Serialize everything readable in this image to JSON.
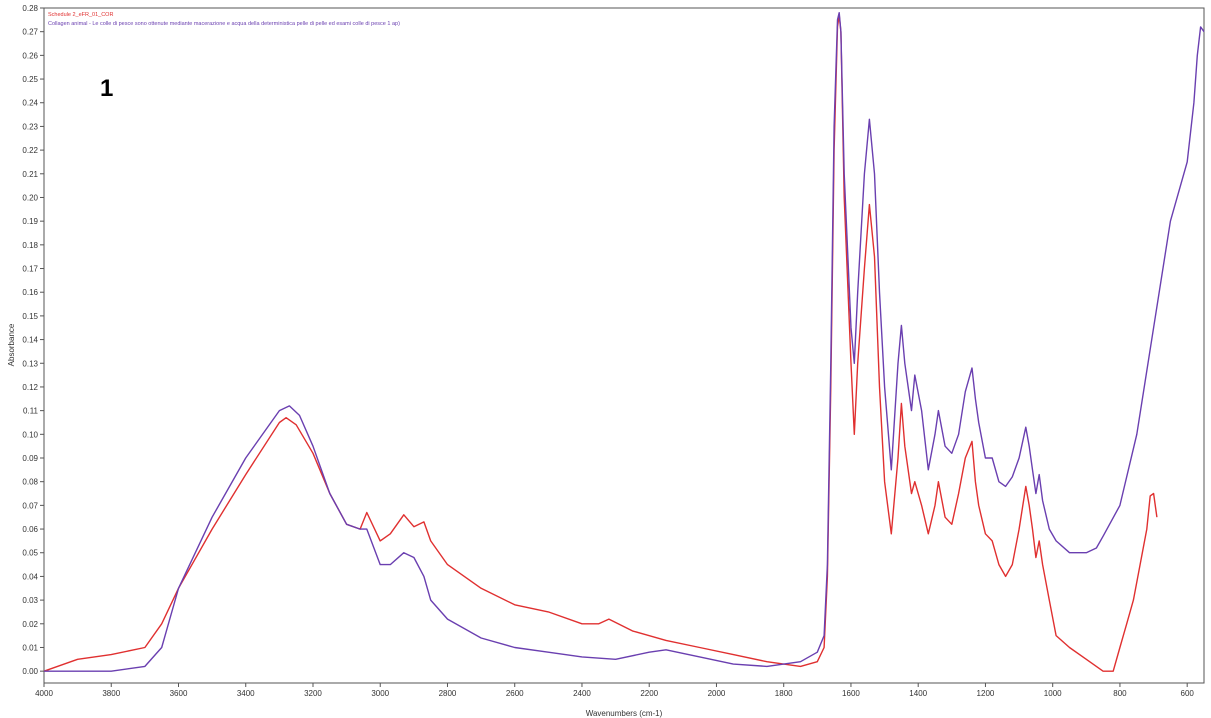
{
  "chart_data": {
    "type": "line",
    "panel_label": "1",
    "xlabel": "Wavenumbers (cm-1)",
    "ylabel": "Absorbance",
    "xlim": [
      4000,
      550
    ],
    "ylim": [
      -0.005,
      0.28
    ],
    "x_ticks": [
      4000,
      3800,
      3600,
      3400,
      3200,
      3000,
      2800,
      2600,
      2400,
      2200,
      2000,
      1800,
      1600,
      1400,
      1200,
      1000,
      800,
      600
    ],
    "x_tick_labels": [
      "4000",
      "3800",
      "3600",
      "3400",
      "3200",
      "3000",
      "2800",
      "2600",
      "2400",
      "2200",
      "2000",
      "1800",
      "1600",
      "1400",
      "1200",
      "1000",
      "800",
      "600"
    ],
    "y_ticks": [
      0.0,
      0.01,
      0.02,
      0.03,
      0.04,
      0.05,
      0.06,
      0.07,
      0.08,
      0.09,
      0.1,
      0.11,
      0.12,
      0.13,
      0.14,
      0.15,
      0.16,
      0.17,
      0.18,
      0.19,
      0.2,
      0.21,
      0.22,
      0.23,
      0.24,
      0.25,
      0.26,
      0.27,
      0.28
    ],
    "y_tick_labels": [
      "0.00",
      "0.01",
      "0.02",
      "0.03",
      "0.04",
      "0.05",
      "0.06",
      "0.07",
      "0.08",
      "0.09",
      "0.10",
      "0.11",
      "0.12",
      "0.13",
      "0.14",
      "0.15",
      "0.16",
      "0.17",
      "0.18",
      "0.19",
      "0.20",
      "0.21",
      "0.22",
      "0.23",
      "0.24",
      "0.25",
      "0.26",
      "0.27",
      "0.28"
    ],
    "grid": false,
    "legend_position": "top-left",
    "series": [
      {
        "name": "Schedule 2_eFR_01_COR",
        "color": "#e03030",
        "points": [
          [
            4000,
            0.0
          ],
          [
            3900,
            0.005
          ],
          [
            3800,
            0.007
          ],
          [
            3700,
            0.01
          ],
          [
            3650,
            0.02
          ],
          [
            3600,
            0.035
          ],
          [
            3500,
            0.06
          ],
          [
            3400,
            0.083
          ],
          [
            3300,
            0.105
          ],
          [
            3280,
            0.107
          ],
          [
            3250,
            0.104
          ],
          [
            3200,
            0.092
          ],
          [
            3150,
            0.075
          ],
          [
            3100,
            0.062
          ],
          [
            3060,
            0.06
          ],
          [
            3040,
            0.067
          ],
          [
            3000,
            0.055
          ],
          [
            2970,
            0.058
          ],
          [
            2930,
            0.066
          ],
          [
            2900,
            0.061
          ],
          [
            2870,
            0.063
          ],
          [
            2850,
            0.055
          ],
          [
            2800,
            0.045
          ],
          [
            2700,
            0.035
          ],
          [
            2600,
            0.028
          ],
          [
            2500,
            0.025
          ],
          [
            2400,
            0.02
          ],
          [
            2350,
            0.02
          ],
          [
            2320,
            0.022
          ],
          [
            2250,
            0.017
          ],
          [
            2150,
            0.013
          ],
          [
            2050,
            0.01
          ],
          [
            1950,
            0.007
          ],
          [
            1850,
            0.004
          ],
          [
            1750,
            0.002
          ],
          [
            1700,
            0.004
          ],
          [
            1680,
            0.01
          ],
          [
            1670,
            0.04
          ],
          [
            1660,
            0.12
          ],
          [
            1650,
            0.22
          ],
          [
            1640,
            0.272
          ],
          [
            1635,
            0.277
          ],
          [
            1630,
            0.27
          ],
          [
            1620,
            0.2
          ],
          [
            1600,
            0.13
          ],
          [
            1590,
            0.1
          ],
          [
            1580,
            0.13
          ],
          [
            1560,
            0.17
          ],
          [
            1545,
            0.197
          ],
          [
            1530,
            0.175
          ],
          [
            1515,
            0.12
          ],
          [
            1500,
            0.08
          ],
          [
            1480,
            0.058
          ],
          [
            1460,
            0.09
          ],
          [
            1450,
            0.113
          ],
          [
            1440,
            0.095
          ],
          [
            1420,
            0.075
          ],
          [
            1410,
            0.08
          ],
          [
            1390,
            0.07
          ],
          [
            1370,
            0.058
          ],
          [
            1350,
            0.07
          ],
          [
            1340,
            0.08
          ],
          [
            1320,
            0.065
          ],
          [
            1300,
            0.062
          ],
          [
            1280,
            0.075
          ],
          [
            1260,
            0.09
          ],
          [
            1240,
            0.097
          ],
          [
            1230,
            0.08
          ],
          [
            1220,
            0.07
          ],
          [
            1200,
            0.058
          ],
          [
            1180,
            0.055
          ],
          [
            1160,
            0.045
          ],
          [
            1140,
            0.04
          ],
          [
            1120,
            0.045
          ],
          [
            1100,
            0.06
          ],
          [
            1080,
            0.078
          ],
          [
            1070,
            0.07
          ],
          [
            1060,
            0.06
          ],
          [
            1050,
            0.048
          ],
          [
            1040,
            0.055
          ],
          [
            1030,
            0.045
          ],
          [
            1010,
            0.03
          ],
          [
            990,
            0.015
          ],
          [
            950,
            0.01
          ],
          [
            900,
            0.005
          ],
          [
            850,
            0.0
          ],
          [
            820,
            0.0
          ],
          [
            800,
            0.01
          ],
          [
            780,
            0.02
          ],
          [
            760,
            0.03
          ],
          [
            740,
            0.045
          ],
          [
            720,
            0.06
          ],
          [
            710,
            0.074
          ],
          [
            700,
            0.075
          ],
          [
            690,
            0.065
          ]
        ]
      },
      {
        "name": "Collagen animal - Le colle di pesce sono ottenute mediante macerazione e acqua della deterministica pelle di pelle ed esami colle di pesce 1 ap)",
        "color": "#6a3fb0",
        "points": [
          [
            4000,
            0.0
          ],
          [
            3900,
            0.0
          ],
          [
            3800,
            0.0
          ],
          [
            3700,
            0.002
          ],
          [
            3650,
            0.01
          ],
          [
            3600,
            0.035
          ],
          [
            3500,
            0.065
          ],
          [
            3400,
            0.09
          ],
          [
            3300,
            0.11
          ],
          [
            3270,
            0.112
          ],
          [
            3240,
            0.108
          ],
          [
            3200,
            0.095
          ],
          [
            3150,
            0.075
          ],
          [
            3100,
            0.062
          ],
          [
            3060,
            0.06
          ],
          [
            3040,
            0.06
          ],
          [
            3000,
            0.045
          ],
          [
            2970,
            0.045
          ],
          [
            2930,
            0.05
          ],
          [
            2900,
            0.048
          ],
          [
            2870,
            0.04
          ],
          [
            2850,
            0.03
          ],
          [
            2800,
            0.022
          ],
          [
            2700,
            0.014
          ],
          [
            2600,
            0.01
          ],
          [
            2500,
            0.008
          ],
          [
            2400,
            0.006
          ],
          [
            2300,
            0.005
          ],
          [
            2200,
            0.008
          ],
          [
            2150,
            0.009
          ],
          [
            2050,
            0.006
          ],
          [
            1950,
            0.003
          ],
          [
            1850,
            0.002
          ],
          [
            1750,
            0.004
          ],
          [
            1700,
            0.008
          ],
          [
            1680,
            0.015
          ],
          [
            1670,
            0.045
          ],
          [
            1660,
            0.13
          ],
          [
            1650,
            0.23
          ],
          [
            1640,
            0.275
          ],
          [
            1635,
            0.278
          ],
          [
            1630,
            0.27
          ],
          [
            1620,
            0.21
          ],
          [
            1600,
            0.145
          ],
          [
            1590,
            0.13
          ],
          [
            1580,
            0.16
          ],
          [
            1560,
            0.21
          ],
          [
            1545,
            0.233
          ],
          [
            1530,
            0.21
          ],
          [
            1515,
            0.16
          ],
          [
            1500,
            0.12
          ],
          [
            1480,
            0.085
          ],
          [
            1460,
            0.13
          ],
          [
            1450,
            0.146
          ],
          [
            1440,
            0.13
          ],
          [
            1420,
            0.11
          ],
          [
            1410,
            0.125
          ],
          [
            1390,
            0.11
          ],
          [
            1370,
            0.085
          ],
          [
            1350,
            0.1
          ],
          [
            1340,
            0.11
          ],
          [
            1320,
            0.095
          ],
          [
            1300,
            0.092
          ],
          [
            1280,
            0.1
          ],
          [
            1260,
            0.118
          ],
          [
            1240,
            0.128
          ],
          [
            1230,
            0.115
          ],
          [
            1220,
            0.105
          ],
          [
            1200,
            0.09
          ],
          [
            1180,
            0.09
          ],
          [
            1160,
            0.08
          ],
          [
            1140,
            0.078
          ],
          [
            1120,
            0.082
          ],
          [
            1100,
            0.09
          ],
          [
            1080,
            0.103
          ],
          [
            1070,
            0.095
          ],
          [
            1060,
            0.085
          ],
          [
            1050,
            0.075
          ],
          [
            1040,
            0.083
          ],
          [
            1030,
            0.072
          ],
          [
            1010,
            0.06
          ],
          [
            990,
            0.055
          ],
          [
            950,
            0.05
          ],
          [
            900,
            0.05
          ],
          [
            870,
            0.052
          ],
          [
            850,
            0.057
          ],
          [
            800,
            0.07
          ],
          [
            750,
            0.1
          ],
          [
            700,
            0.145
          ],
          [
            650,
            0.19
          ],
          [
            600,
            0.215
          ],
          [
            580,
            0.24
          ],
          [
            570,
            0.26
          ],
          [
            560,
            0.272
          ],
          [
            550,
            0.27
          ]
        ]
      }
    ]
  }
}
